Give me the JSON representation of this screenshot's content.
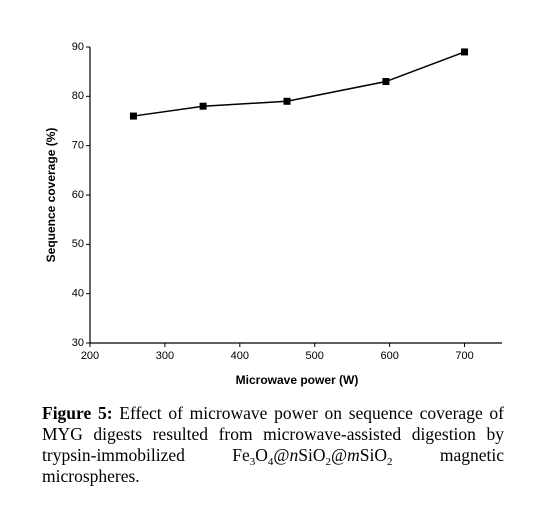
{
  "chart_data": {
    "type": "line",
    "x_label": "Microwave power (W)",
    "y_label": "Sequence coverage (%)",
    "x": [
      258,
      351,
      463,
      595,
      700
    ],
    "series": [
      {
        "name": "Sequence coverage",
        "color": "#000000",
        "values": [
          76,
          78,
          79,
          83,
          89
        ]
      }
    ],
    "xlim": [
      200,
      750
    ],
    "xticks": [
      200,
      300,
      400,
      500,
      600,
      700
    ],
    "ylim": [
      30,
      90
    ],
    "yticks": [
      30,
      40,
      50,
      60,
      70,
      80,
      90
    ],
    "grid": false
  },
  "caption": {
    "label": "Figure 5:",
    "parts": [
      " Effect of microwave power on sequence coverage of MYG digests resulted from microwave-assisted digestion by trypsin-immobilized Fe",
      "3",
      "O",
      "4",
      "@",
      "n",
      "SiO",
      "2",
      "@",
      "m",
      "SiO",
      "2",
      " magnetic microspheres."
    ]
  }
}
